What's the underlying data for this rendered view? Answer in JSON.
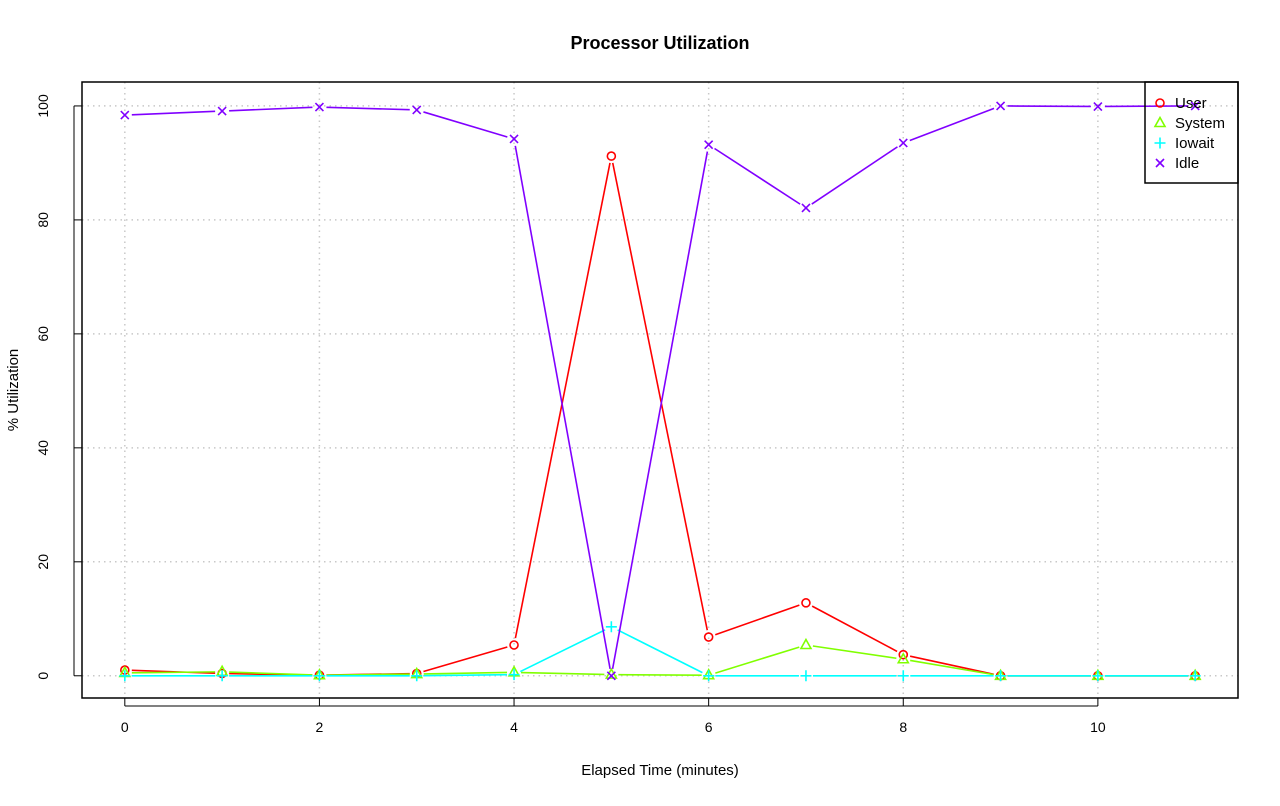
{
  "chart_data": {
    "type": "line",
    "title": "Processor Utilization",
    "xlabel": "Elapsed Time (minutes)",
    "ylabel": "% Utilization",
    "x": [
      0,
      1,
      2,
      3,
      4,
      5,
      6,
      7,
      8,
      9,
      10,
      11
    ],
    "xticks": [
      0,
      2,
      4,
      6,
      8,
      10
    ],
    "yticks": [
      0,
      20,
      40,
      60,
      80,
      100
    ],
    "xlim": [
      -0.44,
      11.44
    ],
    "ylim": [
      -3.9,
      104.2
    ],
    "grid": true,
    "legend_position": "top-right",
    "series": [
      {
        "name": "User",
        "color": "#ff0000",
        "marker": "circle",
        "values": [
          1.0,
          0.4,
          0.1,
          0.4,
          5.4,
          91.2,
          6.8,
          12.8,
          3.7,
          0,
          0,
          0
        ]
      },
      {
        "name": "System",
        "color": "#80ff00",
        "marker": "triangle",
        "values": [
          0.5,
          0.7,
          0.1,
          0.3,
          0.6,
          0.2,
          0.1,
          5.4,
          2.9,
          0,
          0,
          0
        ]
      },
      {
        "name": "Iowait",
        "color": "#00ffff",
        "marker": "plus",
        "values": [
          0,
          0,
          0,
          0,
          0.2,
          8.6,
          0,
          0,
          0,
          0,
          0,
          0
        ]
      },
      {
        "name": "Idle",
        "color": "#8000ff",
        "marker": "x",
        "values": [
          98.4,
          99.1,
          99.8,
          99.3,
          94.2,
          0,
          93.2,
          82.1,
          93.5,
          100,
          99.9,
          100
        ]
      }
    ]
  }
}
